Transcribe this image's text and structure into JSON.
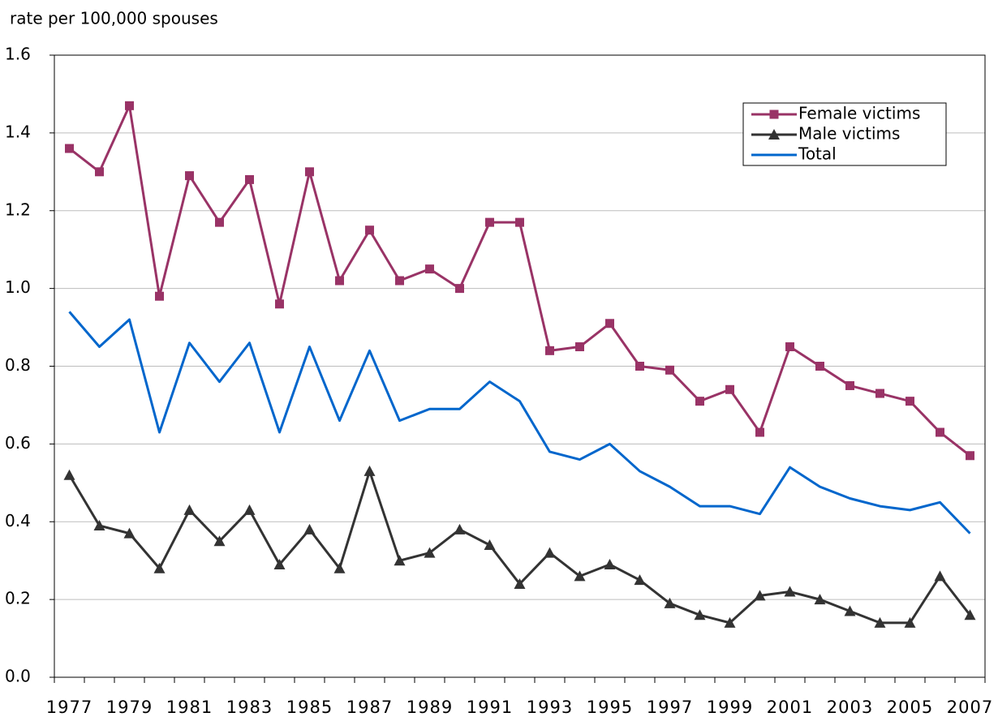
{
  "chart_data": {
    "type": "line",
    "y_label": "rate per 100,000 spouses",
    "categories": [
      "1977",
      null,
      "1979",
      null,
      "1981",
      null,
      "1983",
      null,
      "1985",
      null,
      "1987",
      null,
      "1989",
      null,
      "1991",
      null,
      "1993",
      null,
      "1995",
      null,
      "1997",
      null,
      "1999",
      null,
      "2001",
      null,
      "2003",
      null,
      "2005",
      null,
      "2007"
    ],
    "series": [
      {
        "name": "Female victims",
        "color": "#993366",
        "marker": "square",
        "values": [
          1.36,
          1.3,
          1.47,
          0.98,
          1.29,
          1.17,
          1.28,
          0.96,
          1.3,
          1.02,
          1.15,
          1.02,
          1.05,
          1.0,
          1.17,
          1.17,
          0.84,
          0.85,
          0.91,
          0.8,
          0.79,
          0.71,
          0.74,
          0.63,
          0.85,
          0.8,
          0.75,
          0.73,
          0.71,
          0.63,
          0.57
        ]
      },
      {
        "name": "Male victims",
        "color": "#333333",
        "marker": "triangle",
        "values": [
          0.52,
          0.39,
          0.37,
          0.28,
          0.43,
          0.35,
          0.43,
          0.29,
          0.38,
          0.28,
          0.53,
          0.3,
          0.32,
          0.38,
          0.34,
          0.24,
          0.32,
          0.26,
          0.29,
          0.25,
          0.19,
          0.16,
          0.14,
          0.21,
          0.22,
          0.2,
          0.17,
          0.14,
          0.14,
          0.26,
          0.16
        ]
      },
      {
        "name": "Total",
        "color": "#0066cc",
        "marker": "none",
        "values": [
          0.94,
          0.85,
          0.92,
          0.63,
          0.86,
          0.76,
          0.86,
          0.63,
          0.85,
          0.66,
          0.84,
          0.66,
          0.69,
          0.69,
          0.76,
          0.71,
          0.58,
          0.56,
          0.6,
          0.53,
          0.49,
          0.44,
          0.44,
          0.42,
          0.54,
          0.49,
          0.46,
          0.44,
          0.43,
          0.45,
          0.37
        ]
      }
    ],
    "ylim": [
      0,
      1.6
    ],
    "yticks": [
      {
        "value": 0,
        "label": "0.0"
      },
      0.2,
      0.4,
      0.6,
      0.8,
      {
        "value": 1,
        "label": "1.0"
      },
      1.2,
      1.4,
      1.6
    ],
    "grid": true,
    "legend": "upper right"
  }
}
